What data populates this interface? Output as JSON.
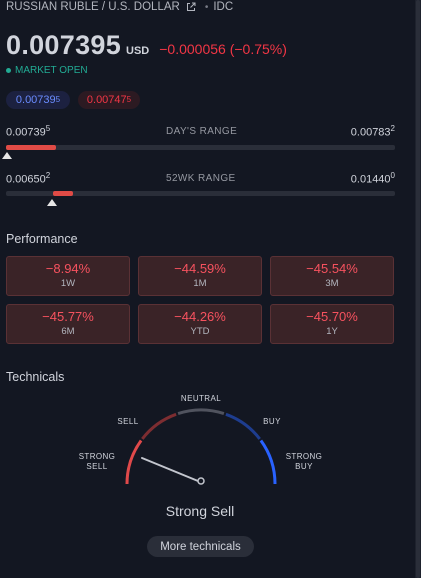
{
  "header": {
    "symbol_name": "RUSSIAN RUBLE / U.S. DOLLAR",
    "source": "IDC",
    "external_icon": "external-link-icon"
  },
  "quote": {
    "price": "0.007395",
    "currency": "USD",
    "change": "−0.000056 (−0.75%)",
    "market_status": "MARKET OPEN"
  },
  "bid_ask": {
    "bid_main": "0.00739",
    "bid_sup": "5",
    "ask_main": "0.00747",
    "ask_sup": "5"
  },
  "days_range": {
    "label": "DAY'S RANGE",
    "low_main": "0.00739",
    "low_sup": "5",
    "high_main": "0.00783",
    "high_sup": "2",
    "position": 0.0
  },
  "wk52_range": {
    "label": "52WK RANGE",
    "low_main": "0.00650",
    "low_sup": "2",
    "high_main": "0.01440",
    "high_sup": "0",
    "position": 0.113
  },
  "performance": {
    "title": "Performance",
    "cells": [
      {
        "value": "−8.94%",
        "label": "1W"
      },
      {
        "value": "−44.59%",
        "label": "1M"
      },
      {
        "value": "−45.54%",
        "label": "3M"
      },
      {
        "value": "−45.77%",
        "label": "6M"
      },
      {
        "value": "−44.26%",
        "label": "YTD"
      },
      {
        "value": "−45.70%",
        "label": "1Y"
      }
    ]
  },
  "technicals": {
    "title": "Technicals",
    "labels": {
      "strong_sell_1": "STRONG",
      "strong_sell_2": "SELL",
      "sell": "SELL",
      "neutral": "NEUTRAL",
      "buy": "BUY",
      "strong_buy_1": "STRONG",
      "strong_buy_2": "BUY"
    },
    "verdict": "Strong Sell",
    "more_button": "More technicals",
    "colors": {
      "sell": "#e0494a",
      "neutral": "#50535e",
      "buy": "#2962ff"
    }
  }
}
